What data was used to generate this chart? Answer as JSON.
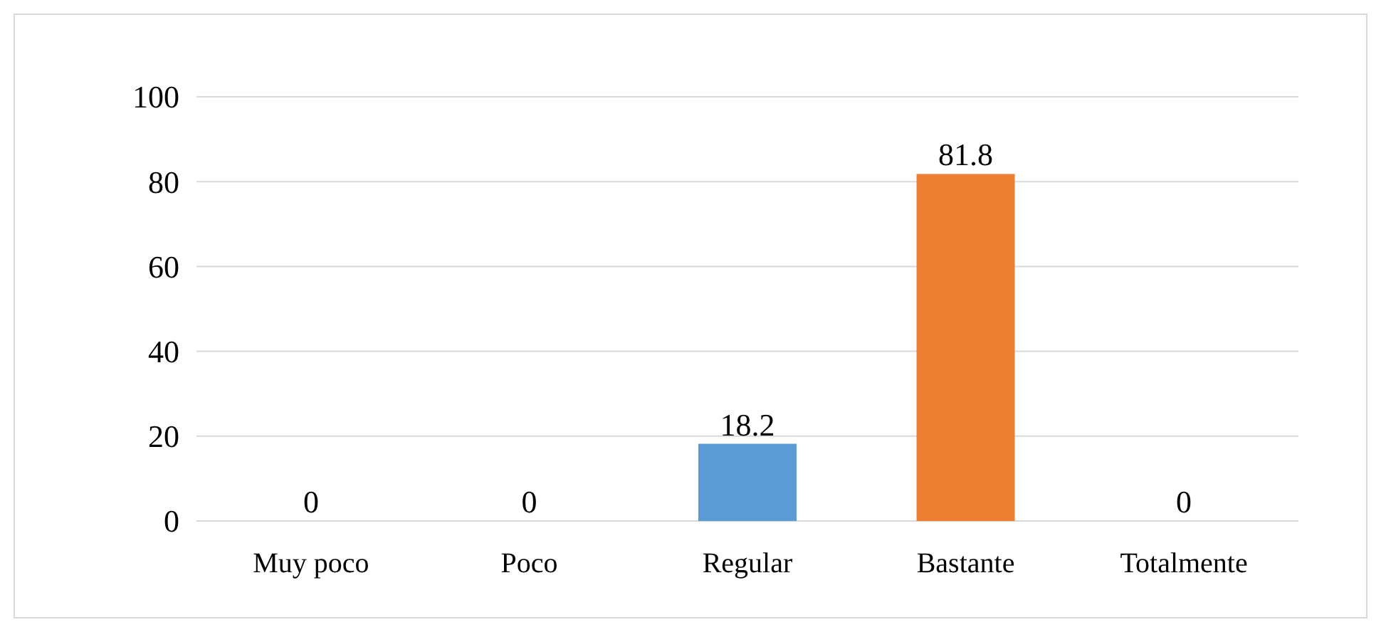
{
  "chart_data": {
    "type": "bar",
    "categories": [
      "Muy poco",
      "Poco",
      "Regular",
      "Bastante",
      "Totalmente"
    ],
    "values": [
      0,
      0,
      18.2,
      81.8,
      0
    ],
    "colors": [
      "#8b0000",
      "#00873f",
      "#5b9bd5",
      "#ed7d31",
      "#7030a0"
    ],
    "ylim": [
      0,
      100
    ],
    "yticks": [
      0,
      20,
      40,
      60,
      80,
      100
    ],
    "grid": "y",
    "data_labels": true
  }
}
